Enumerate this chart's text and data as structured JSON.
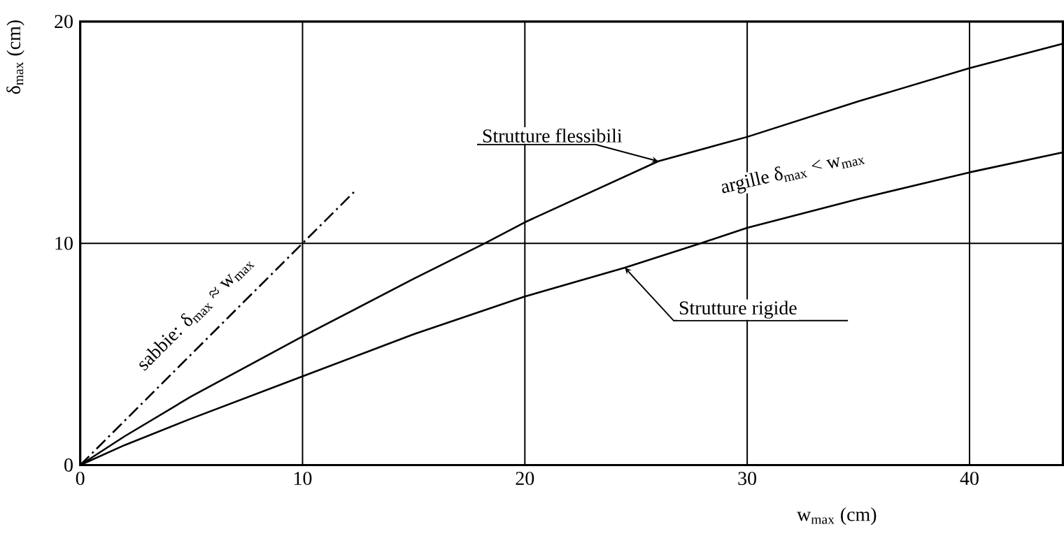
{
  "chart_data": {
    "type": "line",
    "xlabel": "w$_{max}$ (cm)",
    "ylabel": "δ$_{max}$ (cm)",
    "xlim": [
      0,
      44.2
    ],
    "ylim": [
      0,
      20
    ],
    "xticks": [
      0,
      10,
      20,
      30,
      40
    ],
    "yticks": [
      0,
      10,
      20
    ],
    "grid": true,
    "series": [
      {
        "color": "#000000",
        "line_style": "solid",
        "x": [
          0,
          2,
          5,
          10,
          15,
          18.2,
          20,
          26,
          30,
          35,
          40,
          44.2
        ],
        "values": [
          0,
          1.3,
          3.1,
          5.8,
          8.4,
          10,
          10.95,
          13.7,
          14.8,
          16.4,
          17.9,
          19.0
        ]
      },
      {
        "color": "#000000",
        "line_style": "solid",
        "x": [
          0,
          2,
          5,
          10,
          15,
          20,
          24.5,
          27.9,
          30,
          35,
          40,
          44.2
        ],
        "values": [
          0,
          0.9,
          2.1,
          4.0,
          5.9,
          7.6,
          8.9,
          10,
          10.7,
          12.0,
          13.2,
          14.1
        ]
      },
      {
        "color": "#000000",
        "line_style": "dashdot",
        "x": [
          0,
          12.4
        ],
        "values": [
          0,
          12.4
        ]
      }
    ],
    "annotations": [
      {
        "text": "Strutture flessibili",
        "x": 26,
        "y": 13.7
      },
      {
        "text": "Strutture rigide",
        "x": 24.5,
        "y": 8.9
      },
      {
        "text": "sabbie: δ$_{max}$ ≈ w$_{max}$",
        "x": 6,
        "y": 6
      },
      "argille  δ$_{max}$ < w$_{max}$"
    ]
  }
}
